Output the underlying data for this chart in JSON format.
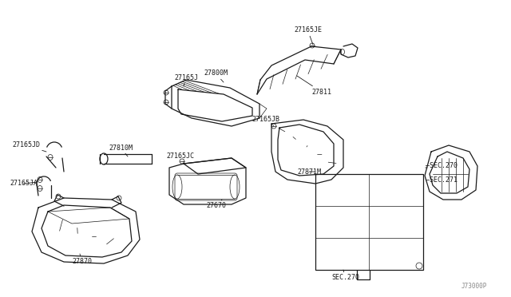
{
  "bg_color": "#ffffff",
  "line_color": "#1a1a1a",
  "fig_width": 6.4,
  "fig_height": 3.72,
  "dpi": 100,
  "diagram_id": "J73000P",
  "part_27165JE_label": "27165JE",
  "part_27811_label": "27811",
  "part_27800M_label": "27800M",
  "part_27165J_label": "27165J",
  "part_27165JB_label": "27165JB",
  "part_27871M_label": "27871M",
  "part_27810M_label": "27810M",
  "part_27165JC_label": "27165JC",
  "part_27165JD_label": "27165JD",
  "part_27165JA_label": "27165JA",
  "part_27670_label": "27670",
  "part_27870_label": "27870",
  "sec270_label": "SEC.270",
  "sec271_label": "SEC.271",
  "font_size_label": 6.0,
  "font_size_id": 5.5,
  "lw_main": 0.9,
  "lw_thin": 0.5,
  "lw_leader": 0.6
}
